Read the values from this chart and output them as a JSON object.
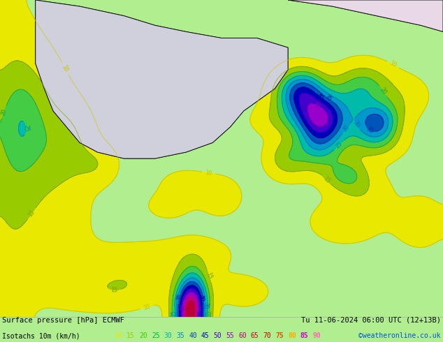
{
  "title_left": "Surface pressure [hPa] ECMWF",
  "title_right": "Tu 11-06-2024 06:00 UTC (12+13B)",
  "legend_label": "Isotachs 10m (km/h)",
  "watermark": "©weatheronline.co.uk",
  "bg_color": "#b0ee90",
  "land_sea_color": "#d8d8e8",
  "bar_color": "#ffffff",
  "figsize": [
    6.34,
    4.9
  ],
  "dpi": 100,
  "legend_values": [
    10,
    15,
    20,
    25,
    30,
    35,
    40,
    45,
    50,
    55,
    60,
    65,
    70,
    75,
    80,
    85,
    90
  ],
  "legend_colors": [
    "#e8e800",
    "#99cc00",
    "#44cc00",
    "#00bb44",
    "#00bbaa",
    "#0088cc",
    "#0044bb",
    "#0000bb",
    "#4400cc",
    "#9900cc",
    "#bb0088",
    "#bb0033",
    "#bb0000",
    "#dd5500",
    "#ffaa00",
    "#cc00cc",
    "#ff69b4"
  ],
  "legend_bold_from": 75,
  "title_fontsize": 7.5,
  "legend_fontsize": 7.0,
  "watermark_color": "#0055cc",
  "contour_line_colors": {
    "10": "#dddd00",
    "15": "#99cc00",
    "20": "#44cc44",
    "25": "#00bb55",
    "30": "#00aaaa",
    "35": "#0088cc",
    "40": "#0044bb",
    "45": "#0000bb",
    "50": "#4400cc",
    "55": "#9900cc",
    "60": "#bb0088",
    "65": "#bb0033",
    "70": "#bb0000"
  }
}
